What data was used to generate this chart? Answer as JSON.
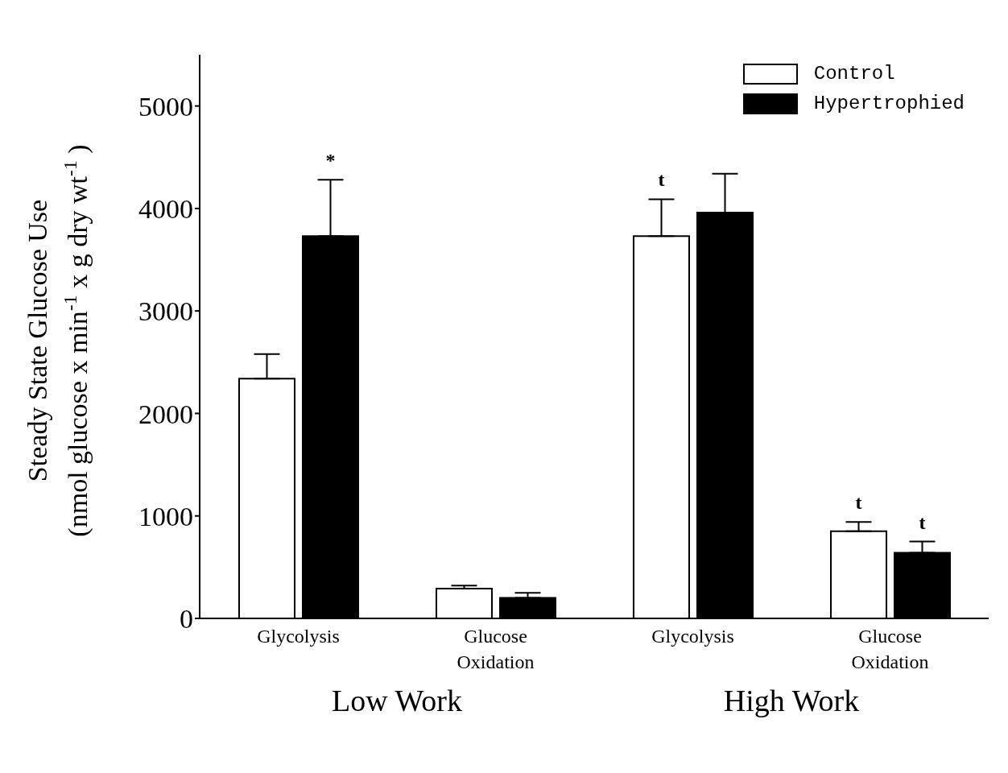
{
  "chart_data": {
    "type": "bar",
    "ylabel": "Steady State Glucose Use\n(nmol glucose x min$^{-1}$ x g dry wt$^{-1}$)",
    "categories": [
      "Glycolysis",
      "Glucose Oxidation",
      "Glycolysis",
      "Glucose Oxidation"
    ],
    "series": [
      {
        "name": "Control",
        "color": "#ffffff",
        "values": [
          2340,
          290,
          3730,
          850
        ],
        "errors": [
          [
            2340,
            2580
          ],
          [
            290,
            320
          ],
          [
            3730,
            4090
          ],
          [
            850,
            940
          ]
        ]
      },
      {
        "name": "Hypertrophied",
        "color": "#000000",
        "values": [
          3730,
          200,
          3960,
          640
        ],
        "errors": [
          [
            3730,
            4280
          ],
          [
            200,
            250
          ],
          [
            3960,
            4340
          ],
          [
            640,
            750
          ]
        ]
      }
    ],
    "annotations": [
      "Low Work",
      "High Work",
      "*",
      "t",
      "t",
      "t"
    ],
    "ylim": [
      0,
      5500
    ],
    "yticks": [
      0,
      1000,
      2000,
      3000,
      4000,
      5000
    ],
    "grid": false,
    "legend": "top right"
  }
}
